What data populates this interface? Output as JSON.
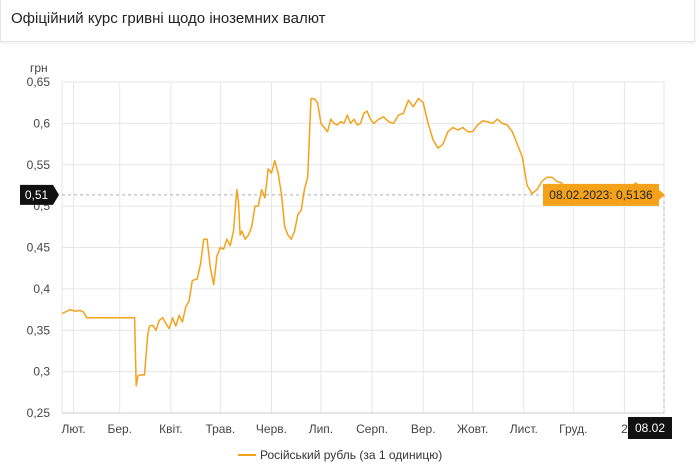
{
  "header": {
    "title": "Офіційний курс гривні щодо іноземних валют"
  },
  "colors": {
    "series": "#f5a21b",
    "grid": "#e6e6e6",
    "crosshair": "#b0b0b0",
    "badge": "#111111"
  },
  "chart_data": {
    "type": "line",
    "title": "",
    "ylabel": "грн",
    "xlabel": "",
    "ylim": [
      0.25,
      0.65
    ],
    "yticks": [
      0.25,
      0.3,
      0.35,
      0.4,
      0.45,
      0.5,
      0.55,
      0.6,
      0.65
    ],
    "ytick_labels": [
      "0,25",
      "0,3",
      "0,35",
      "0,4",
      "0,45",
      "0,5",
      "0,55",
      "0,6",
      "0,65"
    ],
    "xlim": [
      "2022-02-08",
      "2023-02-08"
    ],
    "xticks": [
      {
        "label": "Лют.",
        "date": "2022-02-15"
      },
      {
        "label": "Бер.",
        "date": "2022-03-15"
      },
      {
        "label": "Квіт.",
        "date": "2022-04-15"
      },
      {
        "label": "Трав.",
        "date": "2022-05-15"
      },
      {
        "label": "Черв.",
        "date": "2022-06-15"
      },
      {
        "label": "Лип.",
        "date": "2022-07-15"
      },
      {
        "label": "Серп.",
        "date": "2022-08-15"
      },
      {
        "label": "Вер.",
        "date": "2022-09-15"
      },
      {
        "label": "Жовт.",
        "date": "2022-10-15"
      },
      {
        "label": "Лист.",
        "date": "2022-11-15"
      },
      {
        "label": "Груд.",
        "date": "2022-12-15"
      },
      {
        "label": "2",
        "date": "2023-01-15"
      }
    ],
    "grid": true,
    "legend_position": "bottom-center",
    "series": [
      {
        "name": "Російський рубль (за 1 одиницю)",
        "x": [
          "2022-02-08",
          "2022-02-10",
          "2022-02-13",
          "2022-02-16",
          "2022-02-19",
          "2022-02-21",
          "2022-02-23",
          "2022-02-24",
          "2022-03-01",
          "2022-03-08",
          "2022-03-15",
          "2022-03-20",
          "2022-03-24",
          "2022-03-25",
          "2022-03-26",
          "2022-03-28",
          "2022-03-30",
          "2022-04-01",
          "2022-04-02",
          "2022-04-04",
          "2022-04-06",
          "2022-04-08",
          "2022-04-10",
          "2022-04-12",
          "2022-04-14",
          "2022-04-16",
          "2022-04-18",
          "2022-04-20",
          "2022-04-22",
          "2022-04-24",
          "2022-04-26",
          "2022-04-28",
          "2022-05-01",
          "2022-05-03",
          "2022-05-05",
          "2022-05-07",
          "2022-05-09",
          "2022-05-11",
          "2022-05-13",
          "2022-05-15",
          "2022-05-17",
          "2022-05-19",
          "2022-05-21",
          "2022-05-23",
          "2022-05-25",
          "2022-05-26",
          "2022-05-27",
          "2022-05-28",
          "2022-05-30",
          "2022-06-01",
          "2022-06-03",
          "2022-06-05",
          "2022-06-07",
          "2022-06-09",
          "2022-06-11",
          "2022-06-13",
          "2022-06-15",
          "2022-06-17",
          "2022-06-19",
          "2022-06-21",
          "2022-06-23",
          "2022-06-25",
          "2022-06-27",
          "2022-06-29",
          "2022-07-01",
          "2022-07-03",
          "2022-07-05",
          "2022-07-07",
          "2022-07-09",
          "2022-07-11",
          "2022-07-13",
          "2022-07-15",
          "2022-07-17",
          "2022-07-19",
          "2022-07-21",
          "2022-07-23",
          "2022-07-25",
          "2022-07-27",
          "2022-07-29",
          "2022-07-31",
          "2022-08-02",
          "2022-08-04",
          "2022-08-06",
          "2022-08-08",
          "2022-08-10",
          "2022-08-12",
          "2022-08-14",
          "2022-08-16",
          "2022-08-19",
          "2022-08-22",
          "2022-08-25",
          "2022-08-28",
          "2022-08-31",
          "2022-09-03",
          "2022-09-06",
          "2022-09-09",
          "2022-09-12",
          "2022-09-15",
          "2022-09-18",
          "2022-09-21",
          "2022-09-24",
          "2022-09-27",
          "2022-09-30",
          "2022-10-03",
          "2022-10-06",
          "2022-10-09",
          "2022-10-12",
          "2022-10-15",
          "2022-10-18",
          "2022-10-21",
          "2022-10-24",
          "2022-10-27",
          "2022-10-30",
          "2022-11-02",
          "2022-11-05",
          "2022-11-08",
          "2022-11-11",
          "2022-11-14",
          "2022-11-17",
          "2022-11-20",
          "2022-11-23",
          "2022-11-26",
          "2022-11-29",
          "2022-12-02",
          "2022-12-05",
          "2022-12-08",
          "2022-12-11",
          "2022-12-14",
          "2022-12-17",
          "2022-12-20",
          "2022-12-23",
          "2022-12-26",
          "2022-12-29",
          "2023-01-01",
          "2023-01-04",
          "2023-01-07",
          "2023-01-10",
          "2023-01-13",
          "2023-01-16",
          "2023-01-19",
          "2023-01-22",
          "2023-01-25",
          "2023-01-28",
          "2023-01-31",
          "2023-02-03",
          "2023-02-06",
          "2023-02-08"
        ],
        "y": [
          0.37,
          0.372,
          0.375,
          0.373,
          0.374,
          0.372,
          0.365,
          0.365,
          0.365,
          0.365,
          0.365,
          0.365,
          0.365,
          0.283,
          0.295,
          0.296,
          0.296,
          0.345,
          0.355,
          0.356,
          0.35,
          0.362,
          0.365,
          0.358,
          0.352,
          0.365,
          0.355,
          0.368,
          0.36,
          0.378,
          0.385,
          0.41,
          0.412,
          0.43,
          0.46,
          0.46,
          0.425,
          0.405,
          0.44,
          0.45,
          0.448,
          0.46,
          0.452,
          0.47,
          0.52,
          0.505,
          0.465,
          0.47,
          0.46,
          0.465,
          0.475,
          0.5,
          0.5,
          0.52,
          0.51,
          0.545,
          0.54,
          0.555,
          0.54,
          0.515,
          0.475,
          0.465,
          0.46,
          0.47,
          0.49,
          0.495,
          0.52,
          0.535,
          0.63,
          0.63,
          0.625,
          0.6,
          0.595,
          0.59,
          0.605,
          0.6,
          0.598,
          0.602,
          0.6,
          0.61,
          0.6,
          0.605,
          0.598,
          0.6,
          0.612,
          0.615,
          0.605,
          0.6,
          0.605,
          0.608,
          0.602,
          0.6,
          0.61,
          0.612,
          0.628,
          0.62,
          0.63,
          0.625,
          0.6,
          0.58,
          0.57,
          0.575,
          0.59,
          0.595,
          0.592,
          0.595,
          0.59,
          0.59,
          0.598,
          0.603,
          0.602,
          0.6,
          0.605,
          0.6,
          0.598,
          0.59,
          0.575,
          0.56,
          0.525,
          0.515,
          0.52,
          0.53,
          0.535,
          0.535,
          0.53,
          0.528,
          0.5136,
          0.5136,
          0.52,
          0.518,
          0.522,
          0.515,
          0.525,
          0.52,
          0.518,
          0.522,
          0.525,
          0.52,
          0.526,
          0.524,
          0.528,
          0.52,
          0.5136,
          0.52,
          0.5136,
          0.5136,
          0.5136
        ]
      }
    ],
    "tooltip": {
      "label": "08.02.2023: 0,5136"
    },
    "y_crosshair_label": "0,51",
    "x_crosshair_label": "08.02"
  }
}
